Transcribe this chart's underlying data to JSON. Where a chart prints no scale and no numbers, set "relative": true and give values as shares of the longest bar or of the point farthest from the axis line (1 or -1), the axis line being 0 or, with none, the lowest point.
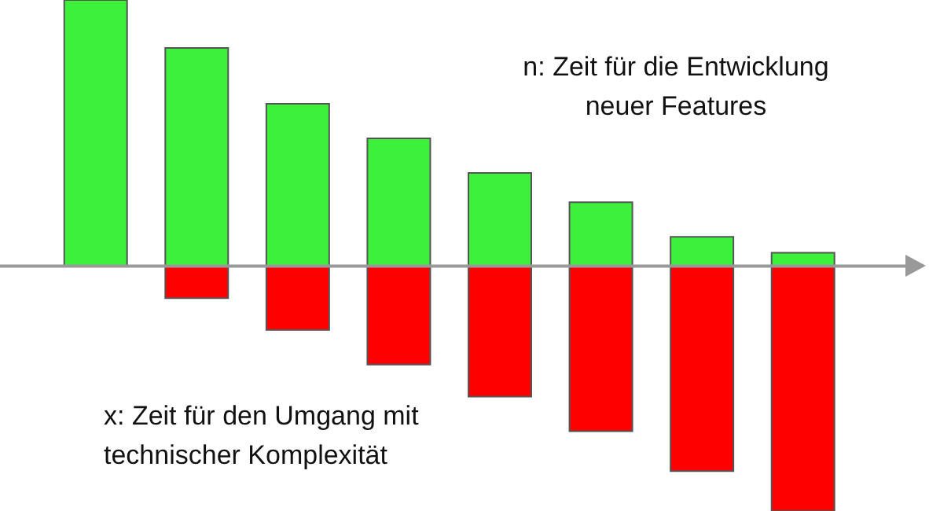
{
  "chart_data": {
    "type": "bar",
    "relative": true,
    "stacked": true,
    "categories": [
      null,
      null,
      null,
      null,
      null,
      null,
      null,
      null
    ],
    "series": [
      {
        "color": "#3cf03c",
        "values": [
          1,
          0.82,
          0.61,
          0.48,
          0.35,
          0.24,
          0.11,
          0.05
        ]
      },
      {
        "color": "#ff0000",
        "values": [
          0,
          -0.12,
          -0.24,
          -0.37,
          -0.49,
          -0.62,
          -0.77,
          -0.92
        ]
      }
    ],
    "annotations": [
      "n: Zeit für die Entwicklung neuer Features",
      "x: Zeit für den Umgang mit technischer Komplexität"
    ]
  }
}
